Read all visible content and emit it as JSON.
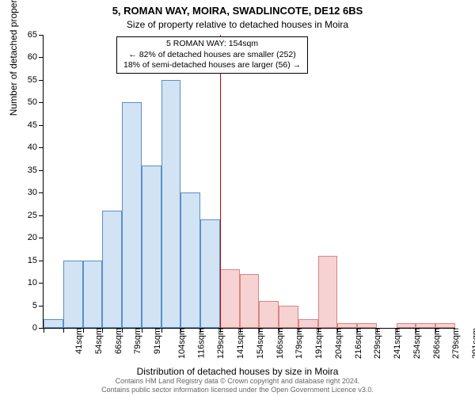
{
  "chart": {
    "type": "histogram",
    "title_main": "5, ROMAN WAY, MOIRA, SWADLINCOTE, DE12 6BS",
    "title_sub": "Size of property relative to detached houses in Moira",
    "ylabel": "Number of detached properties",
    "xlabel": "Distribution of detached houses by size in Moira",
    "ylim": [
      0,
      65
    ],
    "ytick_step": 5,
    "xticks": [
      "41sqm",
      "54sqm",
      "66sqm",
      "79sqm",
      "91sqm",
      "104sqm",
      "116sqm",
      "129sqm",
      "141sqm",
      "154sqm",
      "166sqm",
      "179sqm",
      "191sqm",
      "204sqm",
      "216sqm",
      "229sqm",
      "241sqm",
      "254sqm",
      "266sqm",
      "279sqm",
      "291sqm"
    ],
    "values": [
      2,
      15,
      15,
      26,
      50,
      36,
      55,
      30,
      24,
      13,
      12,
      6,
      5,
      2,
      16,
      1,
      1,
      0,
      1,
      1,
      1
    ],
    "colors_left": {
      "fill": "#d2e3f3",
      "stroke": "#5a8fc9"
    },
    "colors_right": {
      "fill": "#f6d2d2",
      "stroke": "#d98484"
    },
    "ref_line_index": 9,
    "ref_line_color": "#cc0000",
    "annotation": {
      "lines": [
        "5 ROMAN WAY: 154sqm",
        "← 82% of detached houses are smaller (252)",
        "18% of semi-detached houses are larger (56) →"
      ]
    },
    "background_color": "#ffffff",
    "axis_color": "#000000",
    "title_fontsize": 13,
    "label_fontsize": 12,
    "tick_fontsize": 11
  },
  "attribution": {
    "line1": "Contains HM Land Registry data © Crown copyright and database right 2024.",
    "line2": "Contains public sector information licensed under the Open Government Licence v3.0."
  }
}
